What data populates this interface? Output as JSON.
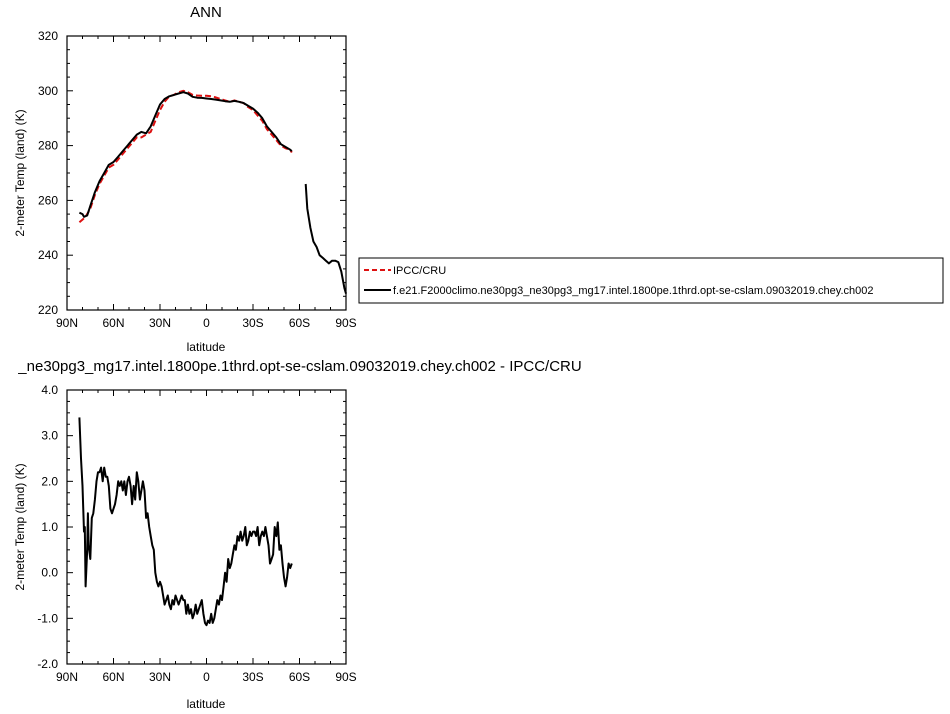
{
  "chart_data": [
    {
      "type": "line",
      "title": "ANN",
      "xlabel": "latitude",
      "ylabel": "2-meter Temp (land) (K)",
      "xlim": [
        -90,
        90
      ],
      "ylim": [
        220,
        320
      ],
      "xticks": [
        -90,
        -60,
        -30,
        0,
        30,
        60,
        90
      ],
      "xticklabels": [
        "90N",
        "60N",
        "30N",
        "0",
        "30S",
        "60S",
        "90S"
      ],
      "yticks": [
        220,
        240,
        260,
        280,
        300,
        320
      ],
      "yticklabels": [
        "220",
        "240",
        "260",
        "280",
        "300",
        "320"
      ],
      "grid": false,
      "legend_position": "right",
      "series": [
        {
          "name": "IPCC/CRU",
          "color": "#dd1111",
          "dash": true,
          "points": [
            [
              -82,
              252
            ],
            [
              -80,
              253
            ],
            [
              -78,
              254
            ],
            [
              -75,
              257
            ],
            [
              -72,
              262
            ],
            [
              -69,
              266
            ],
            [
              -66,
              269
            ],
            [
              -63,
              272
            ],
            [
              -60,
              273
            ],
            [
              -57,
              275
            ],
            [
              -54,
              277
            ],
            [
              -51,
              279
            ],
            [
              -48,
              281
            ],
            [
              -45,
              283
            ],
            [
              -42,
              283
            ],
            [
              -39,
              284
            ],
            [
              -36,
              285
            ],
            [
              -33,
              289
            ],
            [
              -30,
              293
            ],
            [
              -27,
              296
            ],
            [
              -24,
              298
            ],
            [
              -21,
              298.5
            ],
            [
              -18,
              299.5
            ],
            [
              -15,
              300
            ],
            [
              -12,
              299.5
            ],
            [
              -9,
              298.5
            ],
            [
              -6,
              298.3
            ],
            [
              -3,
              298.2
            ],
            [
              0,
              298.2
            ],
            [
              3,
              298
            ],
            [
              6,
              297.6
            ],
            [
              9,
              297
            ],
            [
              12,
              296.5
            ],
            [
              15,
              296
            ],
            [
              18,
              296.5
            ],
            [
              21,
              296
            ],
            [
              24,
              295.5
            ],
            [
              27,
              294
            ],
            [
              30,
              293
            ],
            [
              33,
              291
            ],
            [
              36,
              289
            ],
            [
              39,
              286
            ],
            [
              42,
              284
            ],
            [
              45,
              282
            ],
            [
              48,
              280
            ],
            [
              51,
              279
            ],
            [
              54,
              278.5
            ],
            [
              55,
              277.5
            ]
          ]
        },
        {
          "name": "f.e21.F2000climo.ne30pg3_ne30pg3_mg17.intel.1800pe.1thrd.opt-se-cslam.09032019.chey.ch002",
          "color": "#000000",
          "dash": false,
          "segments": [
            [
              [
                -82,
                255.5
              ],
              [
                -80,
                255
              ],
              [
                -79,
                254
              ],
              [
                -77,
                254.5
              ],
              [
                -75,
                258
              ],
              [
                -72,
                263
              ],
              [
                -69,
                267
              ],
              [
                -66,
                270
              ],
              [
                -63,
                273
              ],
              [
                -60,
                274
              ],
              [
                -57,
                276
              ],
              [
                -54,
                278
              ],
              [
                -51,
                280
              ],
              [
                -48,
                282
              ],
              [
                -45,
                284
              ],
              [
                -42,
                285
              ],
              [
                -39,
                284.5
              ],
              [
                -36,
                287
              ],
              [
                -33,
                291
              ],
              [
                -30,
                295
              ],
              [
                -27,
                297
              ],
              [
                -24,
                298
              ],
              [
                -21,
                298.5
              ],
              [
                -18,
                299
              ],
              [
                -15,
                299.5
              ],
              [
                -12,
                299
              ],
              [
                -9,
                297.8
              ],
              [
                -6,
                297.5
              ],
              [
                -3,
                297.4
              ],
              [
                0,
                297.2
              ],
              [
                3,
                297
              ],
              [
                6,
                296.8
              ],
              [
                9,
                296.5
              ],
              [
                12,
                296.2
              ],
              [
                15,
                296
              ],
              [
                18,
                296.3
              ],
              [
                21,
                296
              ],
              [
                24,
                295.5
              ],
              [
                27,
                294.5
              ],
              [
                30,
                293.5
              ],
              [
                33,
                292
              ],
              [
                36,
                290
              ],
              [
                39,
                287
              ],
              [
                42,
                285
              ],
              [
                45,
                283
              ],
              [
                48,
                280.5
              ],
              [
                51,
                279.5
              ],
              [
                54,
                278.5
              ],
              [
                55,
                278
              ]
            ],
            [
              [
                64,
                266
              ],
              [
                65,
                257
              ],
              [
                67,
                250
              ],
              [
                69,
                245
              ],
              [
                71,
                243
              ],
              [
                73,
                240
              ],
              [
                75,
                239
              ],
              [
                77,
                238
              ],
              [
                79,
                237
              ],
              [
                81,
                238
              ],
              [
                83,
                238
              ],
              [
                85,
                237.5
              ],
              [
                87,
                234
              ],
              [
                89,
                228
              ],
              [
                90,
                226
              ]
            ]
          ]
        }
      ]
    },
    {
      "type": "line",
      "title": "_ne30pg3_mg17.intel.1800pe.1thrd.opt-se-cslam.09032019.chey.ch002 - IPCC/CRU",
      "xlabel": "latitude",
      "ylabel": "2-meter Temp (land) (K)",
      "xlim": [
        -90,
        90
      ],
      "ylim": [
        -2.0,
        4.0
      ],
      "xticks": [
        -90,
        -60,
        -30,
        0,
        30,
        60,
        90
      ],
      "xticklabels": [
        "90N",
        "60N",
        "30N",
        "0",
        "30S",
        "60S",
        "90S"
      ],
      "yticks": [
        -2,
        -1,
        0,
        1,
        2,
        3,
        4
      ],
      "yticklabels": [
        "-2.0",
        "-1.0",
        "0.0",
        "1.0",
        "2.0",
        "3.0",
        "4.0"
      ],
      "grid": false,
      "series": [
        {
          "color": "#000000",
          "dash": false,
          "points": [
            [
              -82,
              3.4
            ],
            [
              -81,
              2.5
            ],
            [
              -80,
              1.9
            ],
            [
              -79,
              0.9
            ],
            [
              -78.5,
              1.0
            ],
            [
              -78,
              -0.3
            ],
            [
              -77,
              0.5
            ],
            [
              -76.5,
              1.3
            ],
            [
              -76,
              0.6
            ],
            [
              -75,
              0.3
            ],
            [
              -74,
              1.2
            ],
            [
              -73,
              1.3
            ],
            [
              -72,
              1.6
            ],
            [
              -71,
              2.0
            ],
            [
              -70,
              2.2
            ],
            [
              -69,
              2.2
            ],
            [
              -68,
              2.3
            ],
            [
              -67,
              2.0
            ],
            [
              -66,
              2.3
            ],
            [
              -65,
              2.1
            ],
            [
              -64,
              2.1
            ],
            [
              -63,
              1.9
            ],
            [
              -62,
              1.4
            ],
            [
              -61,
              1.3
            ],
            [
              -60,
              1.4
            ],
            [
              -59,
              1.5
            ],
            [
              -58,
              1.7
            ],
            [
              -57,
              2.0
            ],
            [
              -56,
              1.9
            ],
            [
              -55,
              2.0
            ],
            [
              -54,
              1.8
            ],
            [
              -53,
              2.0
            ],
            [
              -52,
              1.7
            ],
            [
              -51,
              2.0
            ],
            [
              -50,
              2.1
            ],
            [
              -49,
              1.9
            ],
            [
              -48,
              1.5
            ],
            [
              -47,
              1.9
            ],
            [
              -46,
              1.6
            ],
            [
              -45,
              2.2
            ],
            [
              -44,
              2.0
            ],
            [
              -43,
              1.6
            ],
            [
              -42,
              1.8
            ],
            [
              -41,
              2.0
            ],
            [
              -40,
              1.8
            ],
            [
              -39,
              1.2
            ],
            [
              -38,
              1.3
            ],
            [
              -37,
              1.0
            ],
            [
              -36,
              0.8
            ],
            [
              -35,
              0.6
            ],
            [
              -34,
              0.5
            ],
            [
              -33,
              0.0
            ],
            [
              -32,
              -0.2
            ],
            [
              -31,
              -0.3
            ],
            [
              -30,
              -0.2
            ],
            [
              -29,
              -0.3
            ],
            [
              -28,
              -0.5
            ],
            [
              -27,
              -0.7
            ],
            [
              -26,
              -0.6
            ],
            [
              -25,
              -0.5
            ],
            [
              -24,
              -0.7
            ],
            [
              -23,
              -0.8
            ],
            [
              -22,
              -0.6
            ],
            [
              -21,
              -0.7
            ],
            [
              -20,
              -0.5
            ],
            [
              -19,
              -0.6
            ],
            [
              -18,
              -0.7
            ],
            [
              -17,
              -0.6
            ],
            [
              -16,
              -0.5
            ],
            [
              -15,
              -0.6
            ],
            [
              -14,
              -0.6
            ],
            [
              -13,
              -0.9
            ],
            [
              -12,
              -0.7
            ],
            [
              -11,
              -0.9
            ],
            [
              -10,
              -0.8
            ],
            [
              -9,
              -1.0
            ],
            [
              -8,
              -0.9
            ],
            [
              -7,
              -0.7
            ],
            [
              -6,
              -0.9
            ],
            [
              -5,
              -0.8
            ],
            [
              -4,
              -0.7
            ],
            [
              -3,
              -0.6
            ],
            [
              -2,
              -0.9
            ],
            [
              -1,
              -1.1
            ],
            [
              0,
              -1.15
            ],
            [
              1,
              -1.05
            ],
            [
              2,
              -1.1
            ],
            [
              3,
              -0.9
            ],
            [
              4,
              -1.1
            ],
            [
              5,
              -1.0
            ],
            [
              6,
              -0.8
            ],
            [
              7,
              -0.6
            ],
            [
              8,
              -0.7
            ],
            [
              9,
              -0.5
            ],
            [
              10,
              -0.6
            ],
            [
              11,
              -0.3
            ],
            [
              12,
              0.0
            ],
            [
              13,
              -0.2
            ],
            [
              14,
              0.3
            ],
            [
              15,
              0.1
            ],
            [
              16,
              0.2
            ],
            [
              17,
              0.4
            ],
            [
              18,
              0.6
            ],
            [
              19,
              0.5
            ],
            [
              20,
              0.8
            ],
            [
              21,
              0.7
            ],
            [
              22,
              0.9
            ],
            [
              23,
              0.7
            ],
            [
              24,
              0.8
            ],
            [
              25,
              1.0
            ],
            [
              26,
              0.6
            ],
            [
              27,
              0.7
            ],
            [
              28,
              0.9
            ],
            [
              29,
              0.8
            ],
            [
              30,
              0.9
            ],
            [
              31,
              0.9
            ],
            [
              32,
              0.8
            ],
            [
              33,
              1.0
            ],
            [
              34,
              0.6
            ],
            [
              35,
              0.8
            ],
            [
              36,
              0.9
            ],
            [
              37,
              0.8
            ],
            [
              38,
              1.0
            ],
            [
              39,
              0.8
            ],
            [
              40,
              0.6
            ],
            [
              41,
              0.2
            ],
            [
              42,
              0.3
            ],
            [
              43,
              0.4
            ],
            [
              44,
              1.0
            ],
            [
              45,
              0.8
            ],
            [
              46,
              1.1
            ],
            [
              47,
              0.5
            ],
            [
              48,
              0.6
            ],
            [
              49,
              0.2
            ],
            [
              50,
              -0.1
            ],
            [
              51,
              -0.3
            ],
            [
              52,
              -0.1
            ],
            [
              53,
              0.2
            ],
            [
              54,
              0.1
            ],
            [
              55,
              0.2
            ]
          ]
        }
      ]
    }
  ]
}
